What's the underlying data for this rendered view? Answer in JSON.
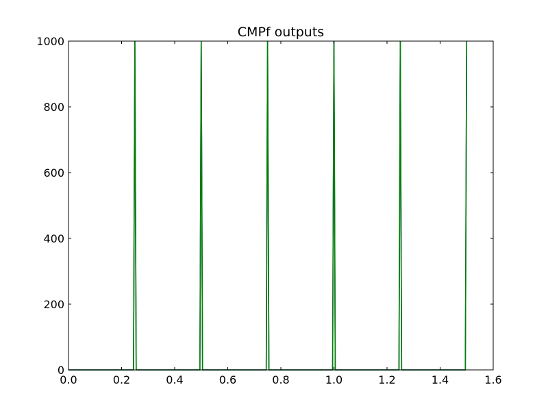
{
  "chart_data": {
    "type": "line",
    "title": "CMPf outputs",
    "xlabel": "",
    "ylabel": "",
    "xlim": [
      0.0,
      1.6
    ],
    "ylim": [
      0,
      1000
    ],
    "grid": false,
    "x_ticks": [
      "0.0",
      "0.2",
      "0.4",
      "0.6",
      "0.8",
      "1.0",
      "1.2",
      "1.4",
      "1.6"
    ],
    "y_ticks": [
      "0",
      "200",
      "400",
      "600",
      "800",
      "1000"
    ],
    "series": [
      {
        "color": "#1f1fa8",
        "x": [
          0.0,
          0.245,
          0.25,
          0.255,
          0.495,
          0.5,
          0.505,
          0.745,
          0.75,
          0.755,
          0.995,
          1.0,
          1.005,
          1.245,
          1.25,
          1.255,
          1.495,
          1.5
        ],
        "y": [
          0,
          0,
          1000,
          0,
          0,
          1000,
          0,
          0,
          1000,
          0,
          0,
          1000,
          0,
          0,
          1000,
          0,
          0,
          1000
        ]
      },
      {
        "color": "#008000",
        "x": [
          0.0,
          0.245,
          0.25,
          0.255,
          0.495,
          0.5,
          0.505,
          0.745,
          0.75,
          0.755,
          0.995,
          1.0,
          1.005,
          1.245,
          1.25,
          1.255,
          1.495,
          1.5
        ],
        "y": [
          0,
          0,
          1000,
          0,
          0,
          1000,
          0,
          0,
          1000,
          0,
          0,
          1000,
          0,
          0,
          1000,
          0,
          0,
          1000
        ]
      }
    ]
  }
}
